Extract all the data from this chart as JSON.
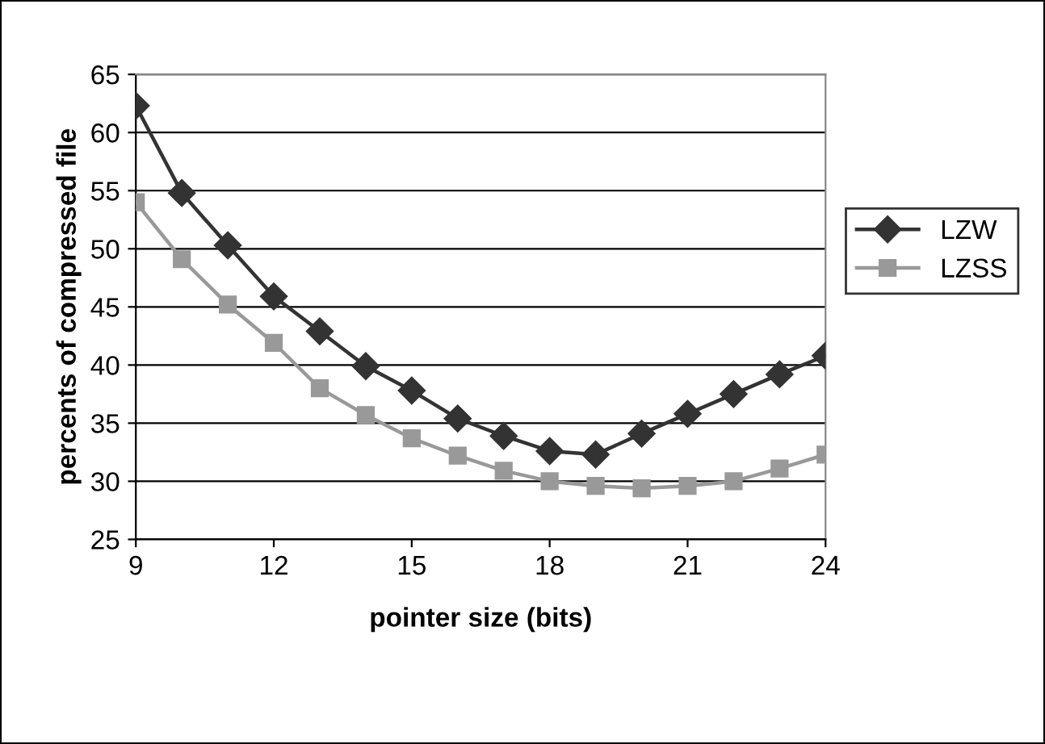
{
  "chart_data": {
    "type": "line",
    "xlabel": "pointer size (bits)",
    "ylabel": "percents of compressed file",
    "x": [
      9,
      10,
      11,
      12,
      13,
      14,
      15,
      16,
      17,
      18,
      19,
      20,
      21,
      22,
      23,
      24
    ],
    "series": [
      {
        "name": "LZW",
        "color": "#333333",
        "marker": "diamond",
        "values": [
          62.3,
          54.8,
          50.3,
          45.9,
          42.9,
          39.9,
          37.8,
          35.4,
          33.9,
          32.6,
          32.3,
          34.1,
          35.8,
          37.5,
          39.2,
          40.8
        ]
      },
      {
        "name": "LZSS",
        "color": "#999999",
        "marker": "square",
        "values": [
          54.0,
          49.1,
          45.2,
          41.9,
          38.0,
          35.7,
          33.7,
          32.2,
          30.9,
          30.0,
          29.6,
          29.4,
          29.6,
          30.0,
          31.1,
          32.3
        ]
      }
    ],
    "xlim": [
      9,
      24
    ],
    "xticks": [
      9,
      12,
      15,
      18,
      21,
      24
    ],
    "ylim": [
      25,
      65
    ],
    "yticks": [
      25,
      30,
      35,
      40,
      45,
      50,
      55,
      60,
      65
    ],
    "grid": "y",
    "legend": "right",
    "line_style": "solid"
  }
}
